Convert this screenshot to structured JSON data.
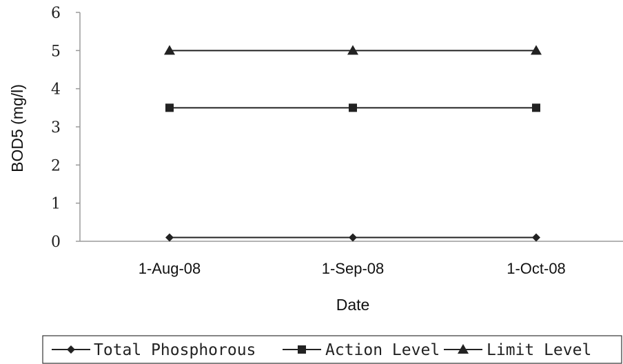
{
  "chart_data": {
    "type": "line",
    "title": "",
    "xlabel": "Date",
    "ylabel": "BOD5 (mg/l)",
    "ylim": [
      0,
      6
    ],
    "yticks": [
      0,
      1,
      2,
      3,
      4,
      5,
      6
    ],
    "categories": [
      "1-Aug-08",
      "1-Sep-08",
      "1-Oct-08"
    ],
    "grid": false,
    "legend_position": "bottom",
    "series": [
      {
        "name": "Total Phosphorous",
        "values": [
          0.1,
          0.1,
          0.1
        ],
        "marker": "diamond",
        "color": "#222222"
      },
      {
        "name": "Action Level",
        "values": [
          3.5,
          3.5,
          3.5
        ],
        "marker": "square",
        "color": "#222222"
      },
      {
        "name": "Limit Level",
        "values": [
          5,
          5,
          5
        ],
        "marker": "triangle",
        "color": "#222222"
      }
    ]
  }
}
